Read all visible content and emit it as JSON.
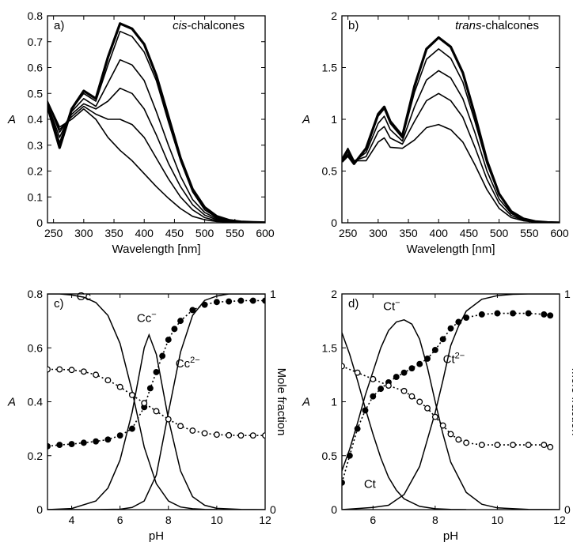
{
  "chart_data": [
    {
      "id": "a",
      "type": "line",
      "panel_label": "a)",
      "title_italic": "cis",
      "title_rest": "-chalcones",
      "xlabel": "Wavelength [nm]",
      "ylabel": "A",
      "xlim": [
        240,
        600
      ],
      "ylim": [
        0,
        0.8
      ],
      "xticks": [
        250,
        300,
        350,
        400,
        450,
        500,
        550,
        600
      ],
      "yticks": [
        0,
        0.1,
        0.2,
        0.3,
        0.4,
        0.5,
        0.6,
        0.7,
        0.8
      ],
      "grid": false,
      "legend": "none",
      "series": [
        {
          "x": [
            240,
            260,
            280,
            300,
            320,
            340,
            360,
            380,
            400,
            420,
            440,
            460,
            480,
            500,
            520,
            540,
            560,
            580,
            600
          ],
          "y": [
            0.47,
            0.37,
            0.4,
            0.44,
            0.4,
            0.33,
            0.28,
            0.24,
            0.19,
            0.14,
            0.095,
            0.055,
            0.025,
            0.012,
            0.005,
            0.003,
            0.002,
            0.001,
            0.001
          ]
        },
        {
          "x": [
            240,
            260,
            280,
            300,
            320,
            340,
            360,
            380,
            400,
            420,
            440,
            460,
            480,
            500,
            520,
            540,
            560,
            580,
            600
          ],
          "y": [
            0.47,
            0.36,
            0.41,
            0.45,
            0.42,
            0.4,
            0.4,
            0.38,
            0.33,
            0.25,
            0.17,
            0.1,
            0.05,
            0.02,
            0.008,
            0.004,
            0.002,
            0.001,
            0.001
          ]
        },
        {
          "x": [
            240,
            260,
            280,
            300,
            320,
            340,
            360,
            380,
            400,
            420,
            440,
            460,
            480,
            500,
            520,
            540,
            560,
            580,
            600
          ],
          "y": [
            0.47,
            0.35,
            0.42,
            0.46,
            0.44,
            0.47,
            0.52,
            0.5,
            0.44,
            0.34,
            0.23,
            0.14,
            0.07,
            0.03,
            0.012,
            0.005,
            0.002,
            0.001,
            0.001
          ]
        },
        {
          "x": [
            240,
            260,
            280,
            300,
            320,
            340,
            360,
            380,
            400,
            420,
            440,
            460,
            480,
            500,
            520,
            540,
            560,
            580,
            600
          ],
          "y": [
            0.46,
            0.33,
            0.43,
            0.48,
            0.45,
            0.54,
            0.63,
            0.61,
            0.55,
            0.43,
            0.3,
            0.18,
            0.09,
            0.04,
            0.016,
            0.007,
            0.003,
            0.001,
            0.001
          ]
        },
        {
          "x": [
            240,
            260,
            280,
            300,
            320,
            340,
            360,
            380,
            400,
            420,
            440,
            460,
            480,
            500,
            520,
            540,
            560,
            580,
            600
          ],
          "y": [
            0.46,
            0.31,
            0.44,
            0.5,
            0.47,
            0.61,
            0.74,
            0.72,
            0.66,
            0.55,
            0.39,
            0.24,
            0.12,
            0.05,
            0.02,
            0.009,
            0.004,
            0.002,
            0.001
          ]
        },
        {
          "x": [
            240,
            260,
            280,
            300,
            320,
            340,
            360,
            380,
            400,
            420,
            440,
            460,
            480,
            500,
            520,
            540,
            560,
            580,
            600
          ],
          "y": [
            0.45,
            0.29,
            0.44,
            0.51,
            0.48,
            0.64,
            0.77,
            0.75,
            0.69,
            0.57,
            0.41,
            0.25,
            0.13,
            0.06,
            0.025,
            0.01,
            0.004,
            0.002,
            0.001
          ]
        }
      ]
    },
    {
      "id": "b",
      "type": "line",
      "panel_label": "b)",
      "title_italic": "trans",
      "title_rest": "-chalcones",
      "xlabel": "Wavelength [nm]",
      "ylabel": "A",
      "xlim": [
        240,
        600
      ],
      "ylim": [
        0,
        2
      ],
      "xticks": [
        250,
        300,
        350,
        400,
        450,
        500,
        550,
        600
      ],
      "yticks": [
        0,
        0.5,
        1,
        1.5,
        2
      ],
      "grid": false,
      "legend": "none",
      "series": [
        {
          "x": [
            240,
            250,
            260,
            280,
            300,
            310,
            320,
            340,
            360,
            380,
            400,
            420,
            440,
            460,
            480,
            500,
            520,
            540,
            560,
            580,
            600
          ],
          "y": [
            0.62,
            0.72,
            0.6,
            0.6,
            0.78,
            0.82,
            0.73,
            0.72,
            0.8,
            0.92,
            0.95,
            0.9,
            0.78,
            0.56,
            0.32,
            0.14,
            0.05,
            0.02,
            0.006,
            0.002,
            0.001
          ]
        },
        {
          "x": [
            240,
            250,
            260,
            280,
            300,
            310,
            320,
            340,
            360,
            380,
            400,
            420,
            440,
            460,
            480,
            500,
            520,
            540,
            560,
            580,
            600
          ],
          "y": [
            0.62,
            0.7,
            0.6,
            0.64,
            0.88,
            0.93,
            0.82,
            0.76,
            0.98,
            1.18,
            1.25,
            1.18,
            1.02,
            0.73,
            0.42,
            0.19,
            0.07,
            0.025,
            0.008,
            0.002,
            0.001
          ]
        },
        {
          "x": [
            240,
            250,
            260,
            280,
            300,
            310,
            320,
            340,
            360,
            380,
            400,
            420,
            440,
            460,
            480,
            500,
            520,
            540,
            560,
            580,
            600
          ],
          "y": [
            0.61,
            0.68,
            0.59,
            0.68,
            0.96,
            1.03,
            0.9,
            0.79,
            1.12,
            1.38,
            1.47,
            1.4,
            1.2,
            0.87,
            0.5,
            0.23,
            0.09,
            0.03,
            0.01,
            0.003,
            0.001
          ]
        },
        {
          "x": [
            240,
            250,
            260,
            280,
            300,
            310,
            320,
            340,
            360,
            380,
            400,
            420,
            440,
            460,
            480,
            500,
            520,
            540,
            560,
            580,
            600
          ],
          "y": [
            0.6,
            0.66,
            0.58,
            0.71,
            1.03,
            1.1,
            0.96,
            0.82,
            1.26,
            1.58,
            1.68,
            1.59,
            1.36,
            0.98,
            0.57,
            0.27,
            0.1,
            0.035,
            0.012,
            0.004,
            0.001
          ]
        },
        {
          "x": [
            240,
            250,
            260,
            280,
            300,
            310,
            320,
            340,
            360,
            380,
            400,
            420,
            440,
            460,
            480,
            500,
            520,
            540,
            560,
            580,
            600
          ],
          "y": [
            0.59,
            0.65,
            0.57,
            0.72,
            1.05,
            1.12,
            0.98,
            0.84,
            1.32,
            1.68,
            1.79,
            1.7,
            1.45,
            1.04,
            0.6,
            0.28,
            0.11,
            0.04,
            0.013,
            0.004,
            0.001
          ]
        }
      ]
    },
    {
      "id": "c",
      "type": "line",
      "panel_label": "c)",
      "xlabel": "pH",
      "ylabel": "A",
      "y2label": "Mole fraction",
      "xlim": [
        3,
        12
      ],
      "ylim": [
        0,
        0.8
      ],
      "y2lim": [
        0,
        1
      ],
      "xticks": [
        4,
        6,
        8,
        10,
        12
      ],
      "yticks": [
        0,
        0.2,
        0.4,
        0.6,
        0.8
      ],
      "y2ticks": [
        0,
        1
      ],
      "grid": false,
      "legend": "none",
      "species_labels": [
        {
          "text": "Cc",
          "sup": "",
          "x": 4.5,
          "y": 0.97
        },
        {
          "text": "Cc",
          "sup": "−",
          "x": 7.1,
          "y": 0.87
        },
        {
          "text": "Cc",
          "sup": "2−",
          "x": 8.8,
          "y": 0.66
        }
      ],
      "mole_fraction_curves": [
        {
          "name": "Cc",
          "x": [
            3,
            3.5,
            4,
            4.5,
            5,
            5.5,
            6,
            6.5,
            7,
            7.5,
            8,
            8.5,
            9,
            9.5,
            10
          ],
          "y": [
            1.0,
            1.0,
            0.995,
            0.985,
            0.96,
            0.9,
            0.77,
            0.55,
            0.29,
            0.12,
            0.04,
            0.012,
            0.004,
            0.001,
            0
          ]
        },
        {
          "name": "Cc−",
          "x": [
            3,
            4,
            5,
            5.5,
            6,
            6.5,
            7,
            7.2,
            7.5,
            8,
            8.5,
            9,
            9.5,
            10,
            11,
            12
          ],
          "y": [
            0,
            0.005,
            0.04,
            0.1,
            0.23,
            0.45,
            0.75,
            0.81,
            0.72,
            0.42,
            0.18,
            0.06,
            0.02,
            0.006,
            0.001,
            0
          ]
        },
        {
          "name": "Cc2−",
          "x": [
            3,
            5,
            6,
            6.5,
            7,
            7.5,
            8,
            8.5,
            9,
            9.5,
            10,
            10.5,
            11,
            12
          ],
          "y": [
            0,
            0,
            0.002,
            0.01,
            0.04,
            0.16,
            0.45,
            0.73,
            0.9,
            0.97,
            0.99,
            1.0,
            1.0,
            1.0
          ]
        }
      ],
      "absorbance_series": [
        {
          "marker": "filled",
          "x": [
            3,
            3.5,
            4,
            4.5,
            5,
            5.5,
            6,
            6.5,
            7,
            7.25,
            7.5,
            7.75,
            8,
            8.25,
            8.5,
            9,
            9.5,
            10,
            10.5,
            11,
            11.5,
            12
          ],
          "y": [
            0.235,
            0.24,
            0.243,
            0.248,
            0.253,
            0.26,
            0.275,
            0.3,
            0.38,
            0.45,
            0.51,
            0.57,
            0.63,
            0.67,
            0.7,
            0.74,
            0.76,
            0.77,
            0.772,
            0.775,
            0.775,
            0.775
          ]
        },
        {
          "marker": "open",
          "x": [
            3,
            3.5,
            4,
            4.5,
            5,
            5.5,
            6,
            6.5,
            7,
            7.5,
            8,
            8.5,
            9,
            9.5,
            10,
            10.5,
            11,
            11.5,
            12
          ],
          "y": [
            0.52,
            0.52,
            0.518,
            0.512,
            0.5,
            0.48,
            0.455,
            0.425,
            0.395,
            0.365,
            0.335,
            0.31,
            0.293,
            0.283,
            0.278,
            0.276,
            0.275,
            0.275,
            0.275
          ]
        }
      ]
    },
    {
      "id": "d",
      "type": "line",
      "panel_label": "d)",
      "xlabel": "pH",
      "ylabel": "A",
      "y2label": "Mole fraction",
      "xlim": [
        5,
        12
      ],
      "ylim": [
        0,
        2
      ],
      "y2lim": [
        0,
        1
      ],
      "xticks": [
        6,
        8,
        10,
        12
      ],
      "yticks": [
        0,
        0.5,
        1,
        1.5,
        2
      ],
      "y2ticks": [
        0,
        1
      ],
      "grid": false,
      "legend": "none",
      "species_labels": [
        {
          "text": "Ct",
          "sup": "−",
          "x": 6.6,
          "y": 0.925
        },
        {
          "text": "Ct",
          "sup": "2−",
          "x": 8.6,
          "y": 0.68
        },
        {
          "text": "Ct",
          "sup": "",
          "x": 5.9,
          "y": 0.1
        }
      ],
      "mole_fraction_curves": [
        {
          "name": "Ct",
          "x": [
            5,
            5.25,
            5.5,
            5.75,
            6,
            6.25,
            6.5,
            6.75,
            7,
            7.5,
            8,
            8.5,
            9
          ],
          "y": [
            0.82,
            0.72,
            0.6,
            0.47,
            0.35,
            0.24,
            0.15,
            0.09,
            0.05,
            0.015,
            0.004,
            0.001,
            0
          ]
        },
        {
          "name": "Ct−",
          "x": [
            5,
            5.25,
            5.5,
            5.75,
            6,
            6.25,
            6.5,
            6.75,
            7,
            7.25,
            7.5,
            7.75,
            8,
            8.25,
            8.5,
            9,
            9.5,
            10,
            11,
            12
          ],
          "y": [
            0.18,
            0.28,
            0.4,
            0.53,
            0.64,
            0.75,
            0.83,
            0.87,
            0.88,
            0.86,
            0.79,
            0.66,
            0.5,
            0.35,
            0.22,
            0.08,
            0.025,
            0.008,
            0.001,
            0
          ]
        },
        {
          "name": "Ct2−",
          "x": [
            5,
            6,
            6.5,
            7,
            7.5,
            8,
            8.25,
            8.5,
            8.75,
            9,
            9.5,
            10,
            10.5,
            11,
            12
          ],
          "y": [
            0,
            0.01,
            0.02,
            0.07,
            0.2,
            0.45,
            0.6,
            0.76,
            0.85,
            0.92,
            0.975,
            0.992,
            0.998,
            1.0,
            1.0
          ]
        }
      ],
      "absorbance_series": [
        {
          "marker": "filled",
          "x": [
            5,
            5.25,
            5.5,
            5.75,
            6,
            6.25,
            6.5,
            6.75,
            7,
            7.25,
            7.5,
            7.75,
            8,
            8.25,
            8.5,
            8.75,
            9,
            9.5,
            10,
            10.5,
            11,
            11.5,
            11.7
          ],
          "y": [
            0.25,
            0.5,
            0.75,
            0.92,
            1.05,
            1.12,
            1.18,
            1.23,
            1.27,
            1.31,
            1.35,
            1.4,
            1.48,
            1.58,
            1.68,
            1.74,
            1.78,
            1.81,
            1.82,
            1.82,
            1.82,
            1.81,
            1.8
          ]
        },
        {
          "marker": "open",
          "x": [
            5,
            5.5,
            6,
            6.5,
            7,
            7.25,
            7.5,
            7.75,
            8,
            8.25,
            8.5,
            8.75,
            9,
            9.5,
            10,
            10.5,
            11,
            11.5,
            11.7
          ],
          "y": [
            1.33,
            1.27,
            1.21,
            1.15,
            1.1,
            1.05,
            1.0,
            0.94,
            0.86,
            0.78,
            0.7,
            0.65,
            0.62,
            0.6,
            0.6,
            0.6,
            0.6,
            0.6,
            0.58
          ]
        }
      ]
    }
  ]
}
